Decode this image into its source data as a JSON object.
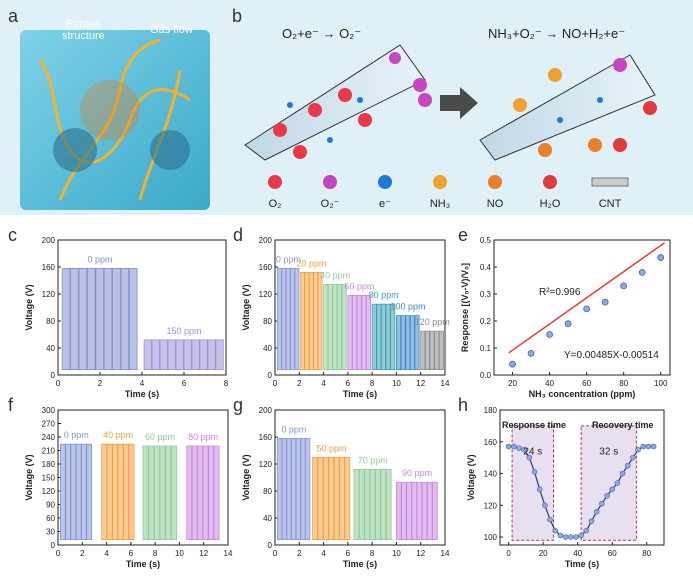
{
  "panels": {
    "a": {
      "label": "a",
      "porous_label_1": "Porous",
      "porous_label_2": "structure",
      "gas_label": "Gas flow"
    },
    "b": {
      "label": "b",
      "eq1": "O₂+e⁻ → O₂⁻",
      "eq2": "NH₃+O₂⁻ → NO+H₂+e⁻",
      "legend": [
        "O₂",
        "O₂⁻",
        "e⁻",
        "NH₃",
        "NO",
        "H₂O",
        "CNT"
      ],
      "legend_colors": [
        "#e8394a",
        "#c845c0",
        "#1d7ad6",
        "#f0a030",
        "#e77f2c",
        "#e23a3a",
        "#888888"
      ]
    },
    "c": {
      "label": "c"
    },
    "d": {
      "label": "d"
    },
    "e": {
      "label": "e"
    },
    "f": {
      "label": "f"
    },
    "g": {
      "label": "g"
    },
    "h": {
      "label": "h"
    }
  },
  "chart_data": [
    {
      "id": "c",
      "type": "line",
      "xlabel": "Time (s)",
      "ylabel": "Voltage (V)",
      "xlim": [
        0,
        8
      ],
      "ylim": [
        0,
        200
      ],
      "xticks": [
        0,
        2,
        4,
        6,
        8
      ],
      "yticks": [
        0,
        40,
        80,
        120,
        160,
        200
      ],
      "series": [
        {
          "name": "0 ppm",
          "color": "#7f8fd0",
          "t_start": 0.2,
          "t_end": 3.8,
          "peak": 158,
          "pulses": 9
        },
        {
          "name": "150 ppm",
          "color": "#9b8fd6",
          "t_start": 4.1,
          "t_end": 7.9,
          "peak": 52,
          "pulses": 10
        }
      ]
    },
    {
      "id": "d",
      "type": "line",
      "xlabel": "Time (s)",
      "ylabel": "Voltage (V)",
      "xlim": [
        0,
        14
      ],
      "ylim": [
        0,
        200
      ],
      "xticks": [
        0,
        2,
        4,
        6,
        8,
        10,
        12,
        14
      ],
      "yticks": [
        0,
        40,
        80,
        120,
        160,
        200
      ],
      "series": [
        {
          "name": "0 ppm",
          "color": "#8596d6",
          "t_start": 0.2,
          "t_end": 2.0,
          "peak": 158,
          "pulses": 5
        },
        {
          "name": "20 ppm",
          "color": "#f0a040",
          "t_start": 2.1,
          "t_end": 3.9,
          "peak": 152,
          "pulses": 5
        },
        {
          "name": "40 ppm",
          "color": "#8ecb96",
          "t_start": 4.0,
          "t_end": 5.9,
          "peak": 134,
          "pulses": 5
        },
        {
          "name": "60 ppm",
          "color": "#c985e0",
          "t_start": 6.0,
          "t_end": 7.9,
          "peak": 118,
          "pulses": 5
        },
        {
          "name": "80 ppm",
          "color": "#3aa0b3",
          "t_start": 8.0,
          "t_end": 9.9,
          "peak": 105,
          "pulses": 5
        },
        {
          "name": "100 ppm",
          "color": "#3b86c9",
          "t_start": 10.0,
          "t_end": 11.9,
          "peak": 88,
          "pulses": 5
        },
        {
          "name": "120 ppm",
          "color": "#8a8a8a",
          "t_start": 12.0,
          "t_end": 13.9,
          "peak": 65,
          "pulses": 5
        }
      ]
    },
    {
      "id": "e",
      "type": "scatter",
      "xlabel": "NH₃ concentration (ppm)",
      "ylabel": "Response [(V₀-V)/V₀]",
      "xlim": [
        10,
        105
      ],
      "ylim": [
        0.0,
        0.5
      ],
      "xticks": [
        20,
        40,
        60,
        80,
        100
      ],
      "yticks": [
        0.0,
        0.1,
        0.2,
        0.3,
        0.4,
        0.5
      ],
      "x": [
        20,
        30,
        40,
        50,
        60,
        70,
        80,
        90,
        100
      ],
      "y": [
        0.04,
        0.08,
        0.15,
        0.19,
        0.245,
        0.27,
        0.33,
        0.38,
        0.435
      ],
      "fit": {
        "slope": 0.00485,
        "intercept": -0.00514
      },
      "annotations": [
        "R²=0.996",
        "Y=0.00485X-0.00514"
      ]
    },
    {
      "id": "f",
      "type": "line",
      "xlabel": "Time (s)",
      "ylabel": "Voltage (V)",
      "xlim": [
        0,
        14
      ],
      "ylim": [
        0,
        300
      ],
      "xticks": [
        0,
        2,
        4,
        6,
        8,
        10,
        12,
        14
      ],
      "yticks": [
        0,
        30,
        60,
        90,
        120,
        150,
        180,
        210,
        240,
        270,
        300
      ],
      "series": [
        {
          "name": "0 ppm",
          "color": "#8596d6",
          "t_start": 0.2,
          "t_end": 2.8,
          "peak": 224,
          "pulses": 6
        },
        {
          "name": "40 ppm",
          "color": "#f0a040",
          "t_start": 3.6,
          "t_end": 6.3,
          "peak": 224,
          "pulses": 6
        },
        {
          "name": "60 ppm",
          "color": "#8ecb96",
          "t_start": 7.0,
          "t_end": 9.8,
          "peak": 220,
          "pulses": 6
        },
        {
          "name": "80 ppm",
          "color": "#c985e0",
          "t_start": 10.6,
          "t_end": 13.3,
          "peak": 220,
          "pulses": 6
        }
      ]
    },
    {
      "id": "g",
      "type": "line",
      "xlabel": "Time (s)",
      "ylabel": "Voltage (V)",
      "xlim": [
        0,
        14
      ],
      "ylim": [
        0,
        200
      ],
      "xticks": [
        0,
        2,
        4,
        6,
        8,
        10,
        12,
        14
      ],
      "yticks": [
        0,
        40,
        80,
        120,
        160,
        200
      ],
      "series": [
        {
          "name": "0 ppm",
          "color": "#8596d6",
          "t_start": 0.2,
          "t_end": 2.9,
          "peak": 158,
          "pulses": 7
        },
        {
          "name": "50 ppm",
          "color": "#f0a040",
          "t_start": 3.1,
          "t_end": 6.2,
          "peak": 130,
          "pulses": 7
        },
        {
          "name": "70 ppm",
          "color": "#8ecb96",
          "t_start": 6.5,
          "t_end": 9.6,
          "peak": 112,
          "pulses": 7
        },
        {
          "name": "90 ppm",
          "color": "#c985e0",
          "t_start": 10.0,
          "t_end": 13.4,
          "peak": 93,
          "pulses": 8
        }
      ]
    },
    {
      "id": "h",
      "type": "line",
      "xlabel": "Time (s)",
      "ylabel": "Voltage (V)",
      "xlim": [
        -5,
        90
      ],
      "ylim": [
        95,
        180
      ],
      "xticks": [
        0,
        20,
        40,
        60,
        80
      ],
      "yticks": [
        100,
        120,
        140,
        160,
        180
      ],
      "x": [
        0,
        3,
        6,
        9,
        12,
        15,
        18,
        21,
        24,
        27,
        30,
        33,
        36,
        39,
        42,
        45,
        48,
        51,
        54,
        57,
        60,
        63,
        66,
        69,
        72,
        75,
        78,
        81,
        84
      ],
      "y": [
        157,
        157,
        156,
        155,
        150,
        141,
        130,
        120,
        111,
        104,
        101,
        100,
        100,
        100,
        101,
        104,
        110,
        116,
        121,
        126,
        130,
        134,
        140,
        145,
        150,
        155,
        157,
        157,
        157
      ],
      "annotations": [
        "Response time",
        "Recovery time",
        "24 s",
        "32 s"
      ]
    }
  ]
}
